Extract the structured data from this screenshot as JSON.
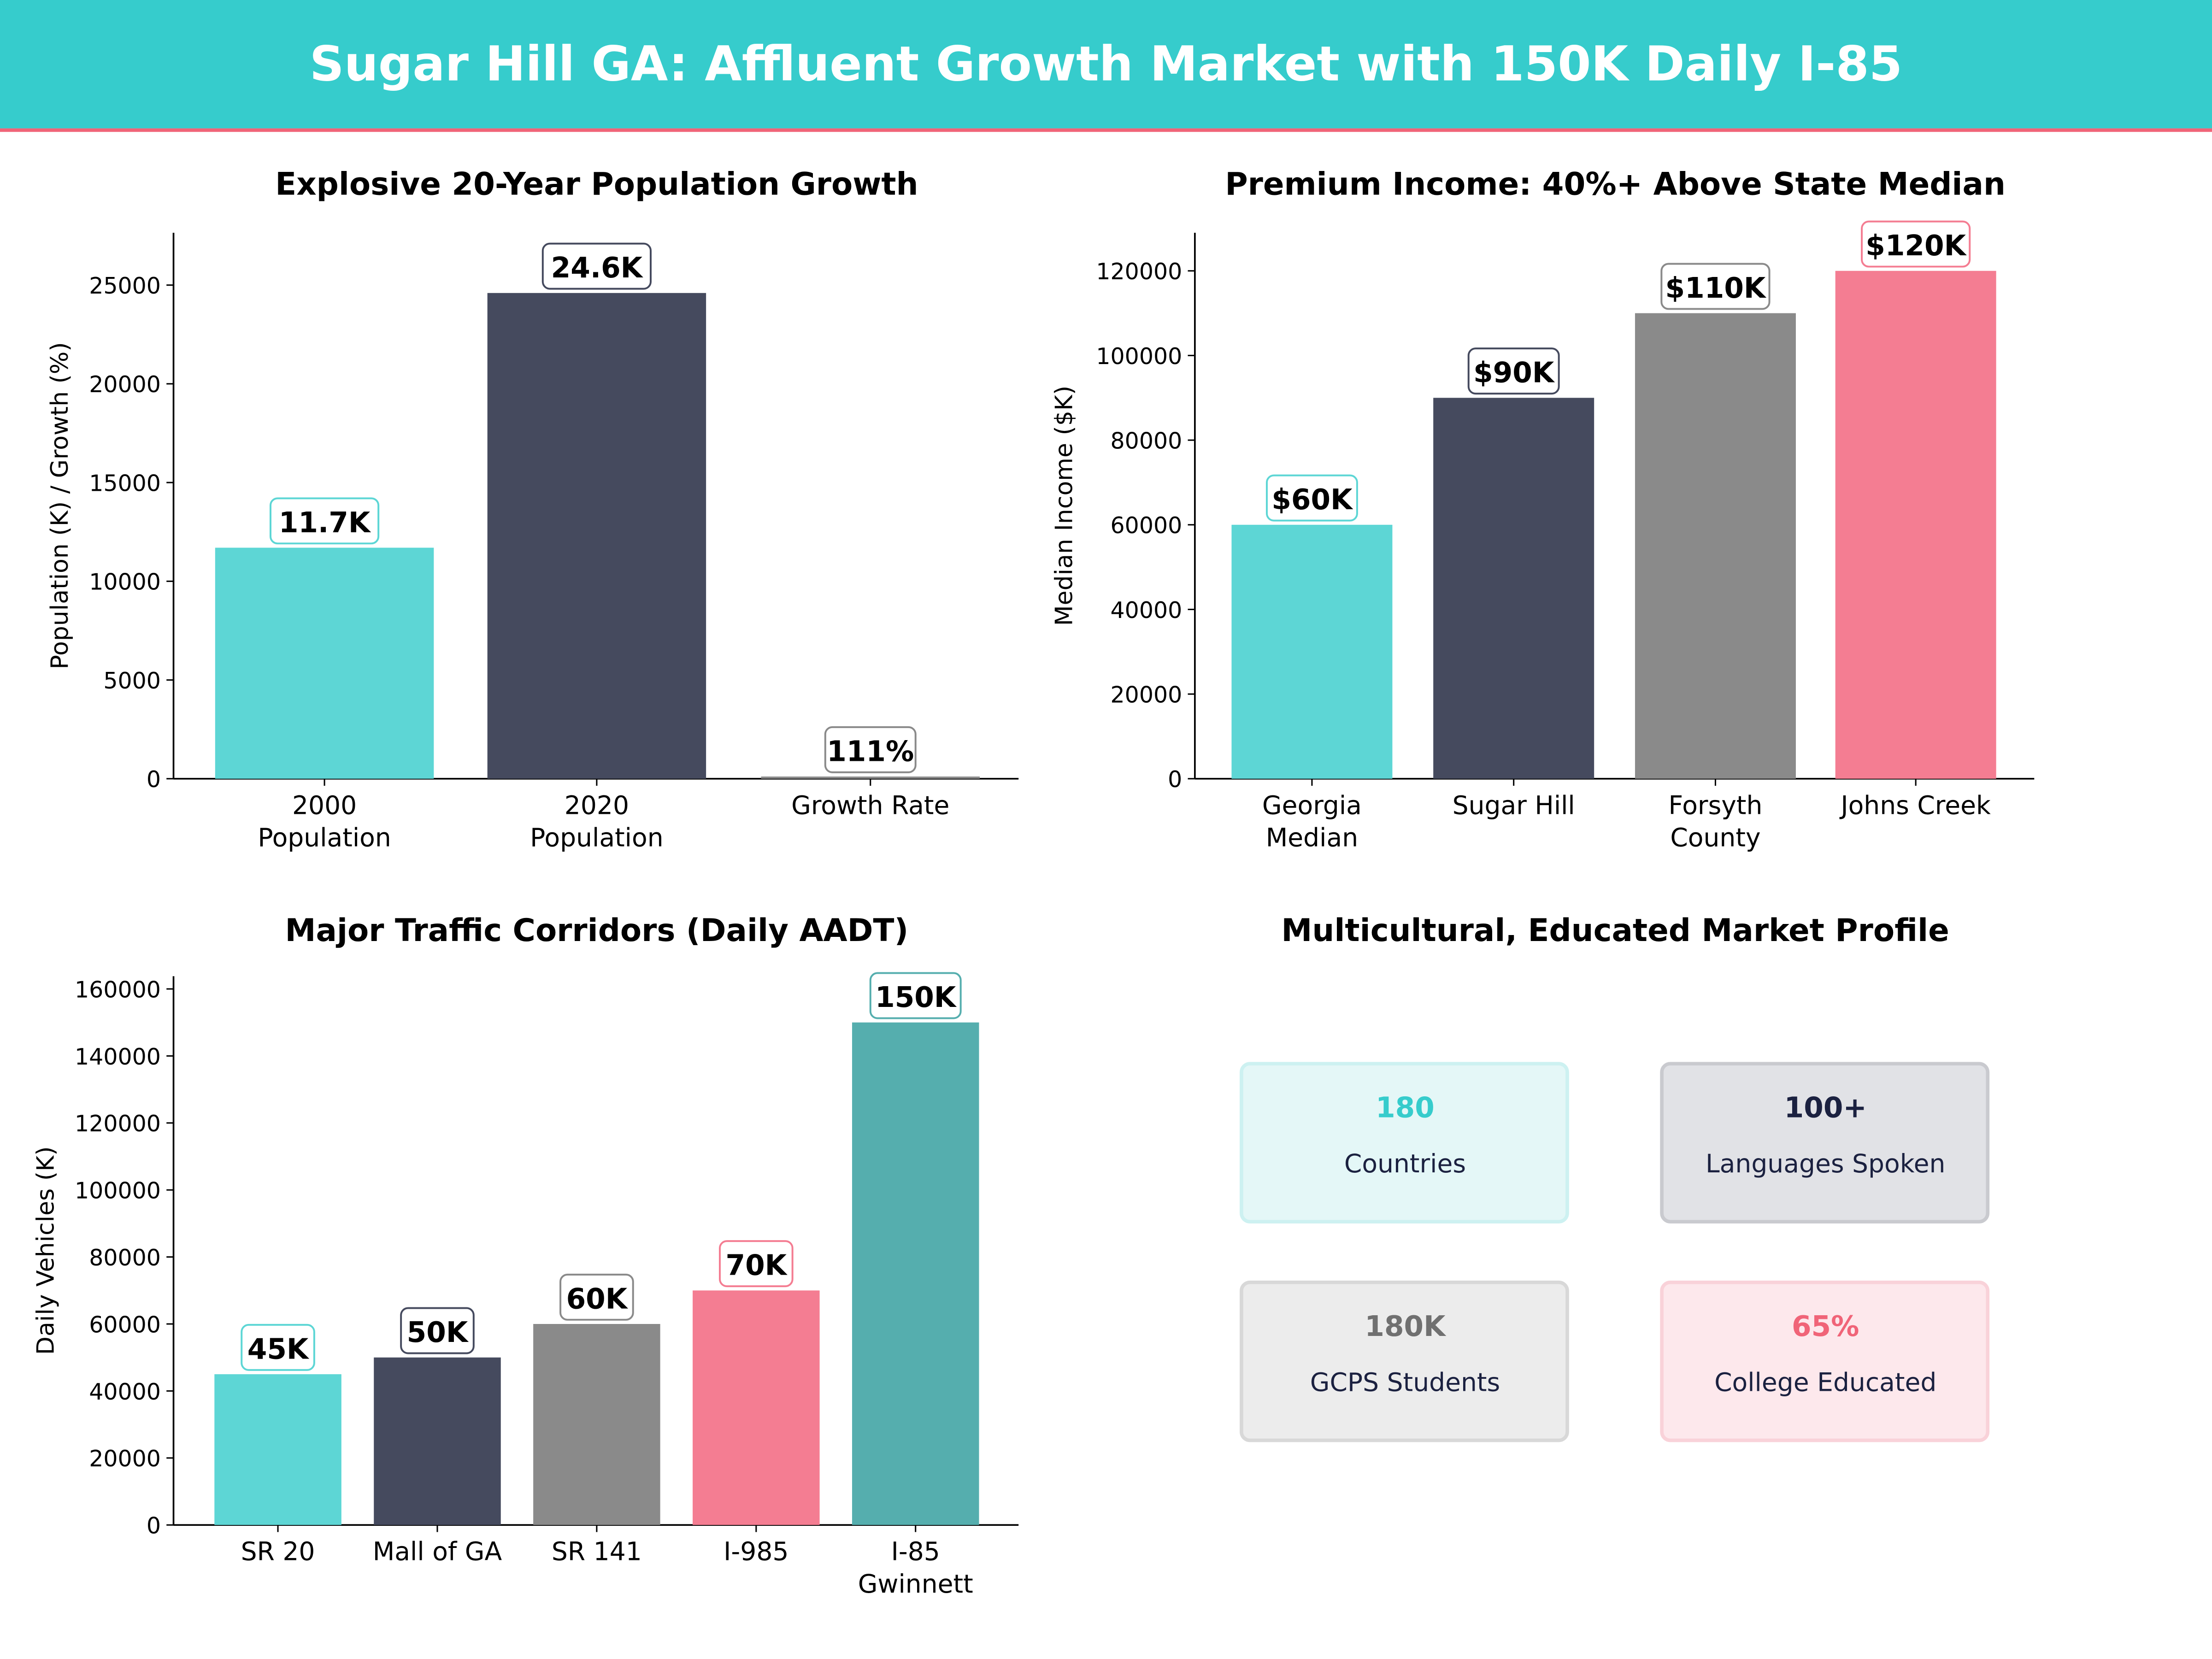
{
  "header": {
    "title": "Sugar Hill GA: Affluent Growth Market with 150K Daily I-85",
    "bg_color": "#36CCCC",
    "accent_line_color": "#F06478"
  },
  "chart_data": [
    {
      "type": "bar",
      "title": "Explosive 20-Year Population Growth",
      "xlabel": "",
      "ylabel": "Population (K) / Growth (%)",
      "categories": [
        "2000\nPopulation",
        "2020\nPopulation",
        "Growth Rate"
      ],
      "values": [
        11700,
        24600,
        111
      ],
      "data_labels": [
        "11.7K",
        "24.6K",
        "111%"
      ],
      "colors": [
        "#5DD6D5",
        "#454A5E",
        "#8A8A8A"
      ],
      "yticks": [
        0,
        5000,
        10000,
        15000,
        20000,
        25000
      ],
      "ylim": [
        0,
        27650
      ],
      "grid": false
    },
    {
      "type": "bar",
      "title": "Premium Income: 40%+ Above State Median",
      "xlabel": "",
      "ylabel": "Median Income ($K)",
      "categories": [
        "Georgia\nMedian",
        "Sugar Hill",
        "Forsyth\nCounty",
        "Johns Creek"
      ],
      "values": [
        60000,
        90000,
        110000,
        120000
      ],
      "data_labels": [
        "$60K",
        "$90K",
        "$110K",
        "$120K"
      ],
      "colors": [
        "#5DD6D5",
        "#454A5E",
        "#8A8A8A",
        "#F47D92"
      ],
      "yticks": [
        0,
        20000,
        40000,
        60000,
        80000,
        100000,
        120000
      ],
      "ylim": [
        0,
        129000
      ],
      "grid": false
    },
    {
      "type": "bar",
      "title": "Major Traffic Corridors (Daily AADT)",
      "xlabel": "",
      "ylabel": "Daily Vehicles (K)",
      "categories": [
        "SR 20",
        "Mall of GA",
        "SR 141",
        "I-985",
        "I-85\nGwinnett"
      ],
      "values": [
        45000,
        50000,
        60000,
        70000,
        150000
      ],
      "data_labels": [
        "45K",
        "50K",
        "60K",
        "70K",
        "150K"
      ],
      "colors": [
        "#5DD6D5",
        "#454A5E",
        "#8A8A8A",
        "#F47D92",
        "#55AEAE"
      ],
      "yticks": [
        0,
        20000,
        40000,
        60000,
        80000,
        100000,
        120000,
        140000,
        160000
      ],
      "ylim": [
        0,
        163800
      ],
      "grid": false
    }
  ],
  "profile": {
    "title": "Multicultural, Educated Market Profile",
    "cards": [
      {
        "value": "180",
        "label": "Countries",
        "color": "#36CCCC",
        "bg": "#E4F7F7",
        "border": "#CDF1F1"
      },
      {
        "value": "100+",
        "label": "Languages Spoken",
        "color": "#1B2140",
        "bg": "#E1E2E6",
        "border": "#C9CACF"
      },
      {
        "value": "180K",
        "label": "GCPS Students",
        "color": "#707070",
        "bg": "#ECECEC",
        "border": "#D8D8D8"
      },
      {
        "value": "65%",
        "label": "College Educated",
        "color": "#F06478",
        "bg": "#FDE8EC",
        "border": "#F9D2D9"
      }
    ]
  }
}
